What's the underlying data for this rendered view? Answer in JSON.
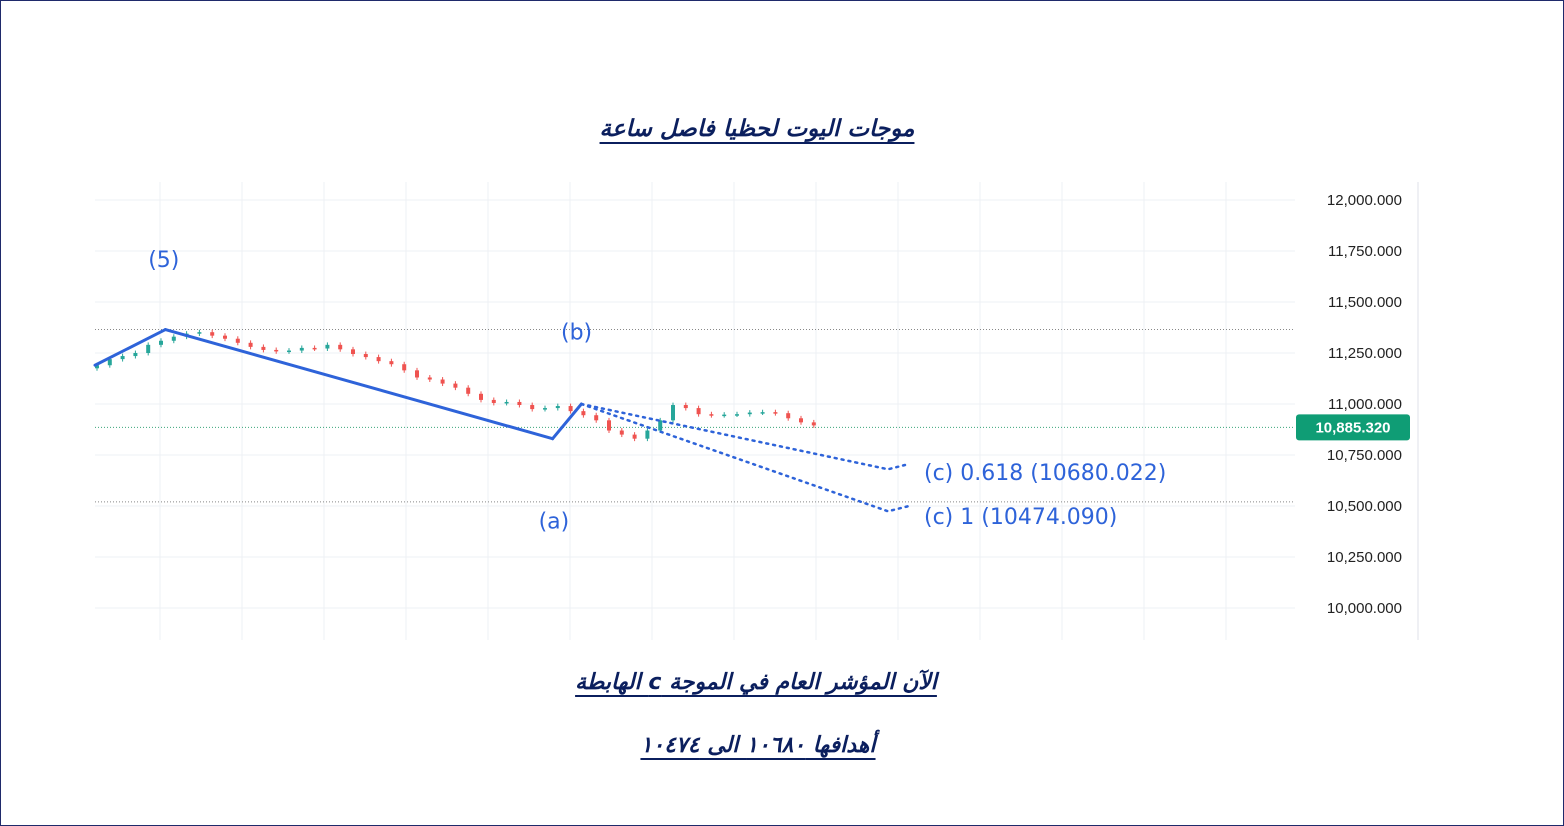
{
  "title": "موجات اليوت لحظيا فاصل ساعة",
  "footer": {
    "line1": "الآن المؤشر العام في الموجة   c الهابطة",
    "line2": "أهدافها ١٠٦٨٠ الى ١٠٤٧٤"
  },
  "colors": {
    "up": "#26a69a",
    "down": "#ef5350",
    "wave": "#2e63d9",
    "last_price_bg": "#0f9d75",
    "text": "#0b1f5e"
  },
  "chart_data": {
    "type": "line",
    "title": "",
    "xlabel": "",
    "ylabel": "",
    "ylim": [
      9850,
      12100
    ],
    "y_ticks": [
      "12,000.000",
      "11,750.000",
      "11,500.000",
      "11,250.000",
      "11,000.000",
      "10,750.000",
      "10,500.000",
      "10,250.000",
      "10,000.000"
    ],
    "y_tick_values": [
      12000,
      11750,
      11500,
      11250,
      11000,
      10750,
      10500,
      10250,
      10000
    ],
    "last_price": {
      "label": "10,885.320",
      "value": 10885.32
    },
    "horizontal_levels": [
      11365,
      10885.32,
      10520
    ],
    "series": [
      {
        "kind": "close_path",
        "x": [
          0,
          10,
          20,
          30,
          40,
          50,
          60,
          70,
          80,
          90,
          100,
          110,
          120,
          130,
          140,
          150,
          160,
          170,
          180
        ],
        "values": [
          11190,
          11245,
          11300,
          11345,
          11330,
          11285,
          11260,
          11275,
          11270,
          11225,
          11175,
          11115,
          11060,
          11010,
          11005,
          10970,
          10960,
          10870,
          10900
        ]
      },
      {
        "kind": "candles",
        "x": [
          0,
          4,
          8,
          12,
          16,
          20,
          24,
          28,
          32,
          36,
          40,
          44,
          48,
          52,
          56,
          60,
          64,
          68,
          72,
          76,
          80,
          84,
          88,
          92,
          96,
          100,
          104,
          108,
          112,
          116,
          120,
          124,
          128,
          132,
          136,
          140,
          144,
          148,
          152,
          156,
          160,
          164,
          168,
          172,
          176,
          180,
          184,
          188,
          192,
          196,
          200,
          204,
          208,
          212,
          216,
          220,
          224
        ],
        "values": [
          11190,
          11220,
          11235,
          11250,
          11290,
          11310,
          11330,
          11345,
          11352,
          11335,
          11320,
          11300,
          11280,
          11265,
          11258,
          11262,
          11275,
          11272,
          11290,
          11268,
          11245,
          11230,
          11210,
          11195,
          11165,
          11130,
          11120,
          11100,
          11080,
          11050,
          11020,
          11005,
          11010,
          10995,
          10975,
          10980,
          10990,
          10965,
          10945,
          10920,
          10870,
          10850,
          10830,
          10870,
          10920,
          10995,
          10980,
          10950,
          10945,
          10948,
          10950,
          10958,
          10960,
          10955,
          10930,
          10910,
          10895
        ]
      }
    ],
    "wave_lines": [
      {
        "label": "(5)",
        "from": [
          0,
          11190
        ],
        "to": [
          22,
          11365
        ]
      },
      {
        "label": "(a)",
        "from": [
          22,
          11365
        ],
        "to": [
          143,
          10830
        ]
      },
      {
        "label": "(b)",
        "from": [
          143,
          10830
        ],
        "to": [
          152,
          11000
        ]
      }
    ],
    "wave_labels": [
      {
        "text": "(5)",
        "x": 21,
        "y": 11710
      },
      {
        "text": "(b)",
        "x": 150,
        "y": 11355
      },
      {
        "text": "(a)",
        "x": 143,
        "y": 10430
      }
    ],
    "targets": [
      {
        "label": "(c) 0.618 (10680.022)",
        "value": 10680.022
      },
      {
        "label": "(c) 1 (10474.090)",
        "value": 10474.09
      }
    ]
  }
}
